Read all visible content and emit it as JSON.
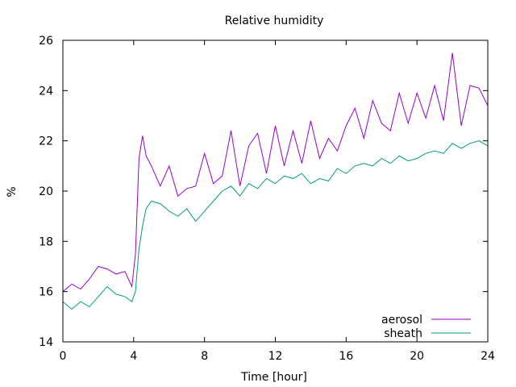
{
  "chart_data": {
    "type": "line",
    "title": "Relative humidity",
    "xlabel": "Time [hour]",
    "ylabel": "%",
    "xlim": [
      0,
      24
    ],
    "ylim": [
      14,
      26
    ],
    "xticks": [
      0,
      4,
      8,
      12,
      16,
      20,
      24
    ],
    "yticks": [
      14,
      16,
      18,
      20,
      22,
      24,
      26
    ],
    "grid": false,
    "legend_position": "bottom-right",
    "series": [
      {
        "name": "aerosol",
        "color": "#9400d3",
        "x": [
          0,
          0.5,
          1,
          1.5,
          2,
          2.5,
          3,
          3.5,
          3.9,
          4.1,
          4.3,
          4.5,
          4.7,
          5,
          5.5,
          6,
          6.5,
          7,
          7.5,
          8,
          8.5,
          9,
          9.5,
          10,
          10.5,
          11,
          11.5,
          12,
          12.5,
          13,
          13.5,
          14,
          14.5,
          15,
          15.5,
          16,
          16.5,
          17,
          17.5,
          18,
          18.5,
          19,
          19.5,
          20,
          20.5,
          21,
          21.5,
          22,
          22.5,
          23,
          23.5,
          24
        ],
        "y": [
          16.0,
          16.3,
          16.1,
          16.5,
          17.0,
          16.9,
          16.7,
          16.8,
          16.2,
          17.5,
          21.3,
          22.2,
          21.4,
          21.0,
          20.2,
          21.0,
          19.8,
          20.1,
          20.2,
          21.5,
          20.3,
          20.6,
          22.4,
          20.2,
          21.8,
          22.3,
          20.7,
          22.6,
          21.0,
          22.4,
          21.1,
          22.8,
          21.3,
          22.1,
          21.6,
          22.6,
          23.3,
          22.1,
          23.6,
          22.7,
          22.4,
          23.9,
          22.7,
          23.9,
          22.9,
          24.2,
          22.8,
          25.5,
          22.6,
          24.2,
          24.1,
          23.4
        ]
      },
      {
        "name": "sheath",
        "color": "#009e73",
        "x": [
          0,
          0.5,
          1,
          1.5,
          2,
          2.5,
          3,
          3.5,
          3.9,
          4.1,
          4.3,
          4.5,
          4.7,
          5,
          5.5,
          6,
          6.5,
          7,
          7.5,
          8,
          8.5,
          9,
          9.5,
          10,
          10.5,
          11,
          11.5,
          12,
          12.5,
          13,
          13.5,
          14,
          14.5,
          15,
          15.5,
          16,
          16.5,
          17,
          17.5,
          18,
          18.5,
          19,
          19.5,
          20,
          20.5,
          21,
          21.5,
          22,
          22.5,
          23,
          23.5,
          24
        ],
        "y": [
          15.6,
          15.3,
          15.6,
          15.4,
          15.8,
          16.2,
          15.9,
          15.8,
          15.6,
          16.0,
          17.7,
          18.6,
          19.3,
          19.6,
          19.5,
          19.2,
          19.0,
          19.3,
          18.8,
          19.2,
          19.6,
          20.0,
          20.2,
          19.8,
          20.3,
          20.1,
          20.5,
          20.3,
          20.6,
          20.5,
          20.7,
          20.3,
          20.5,
          20.4,
          20.9,
          20.7,
          21.0,
          21.1,
          21.0,
          21.3,
          21.1,
          21.4,
          21.2,
          21.3,
          21.5,
          21.6,
          21.5,
          21.9,
          21.7,
          21.9,
          22.0,
          21.8
        ]
      }
    ]
  }
}
